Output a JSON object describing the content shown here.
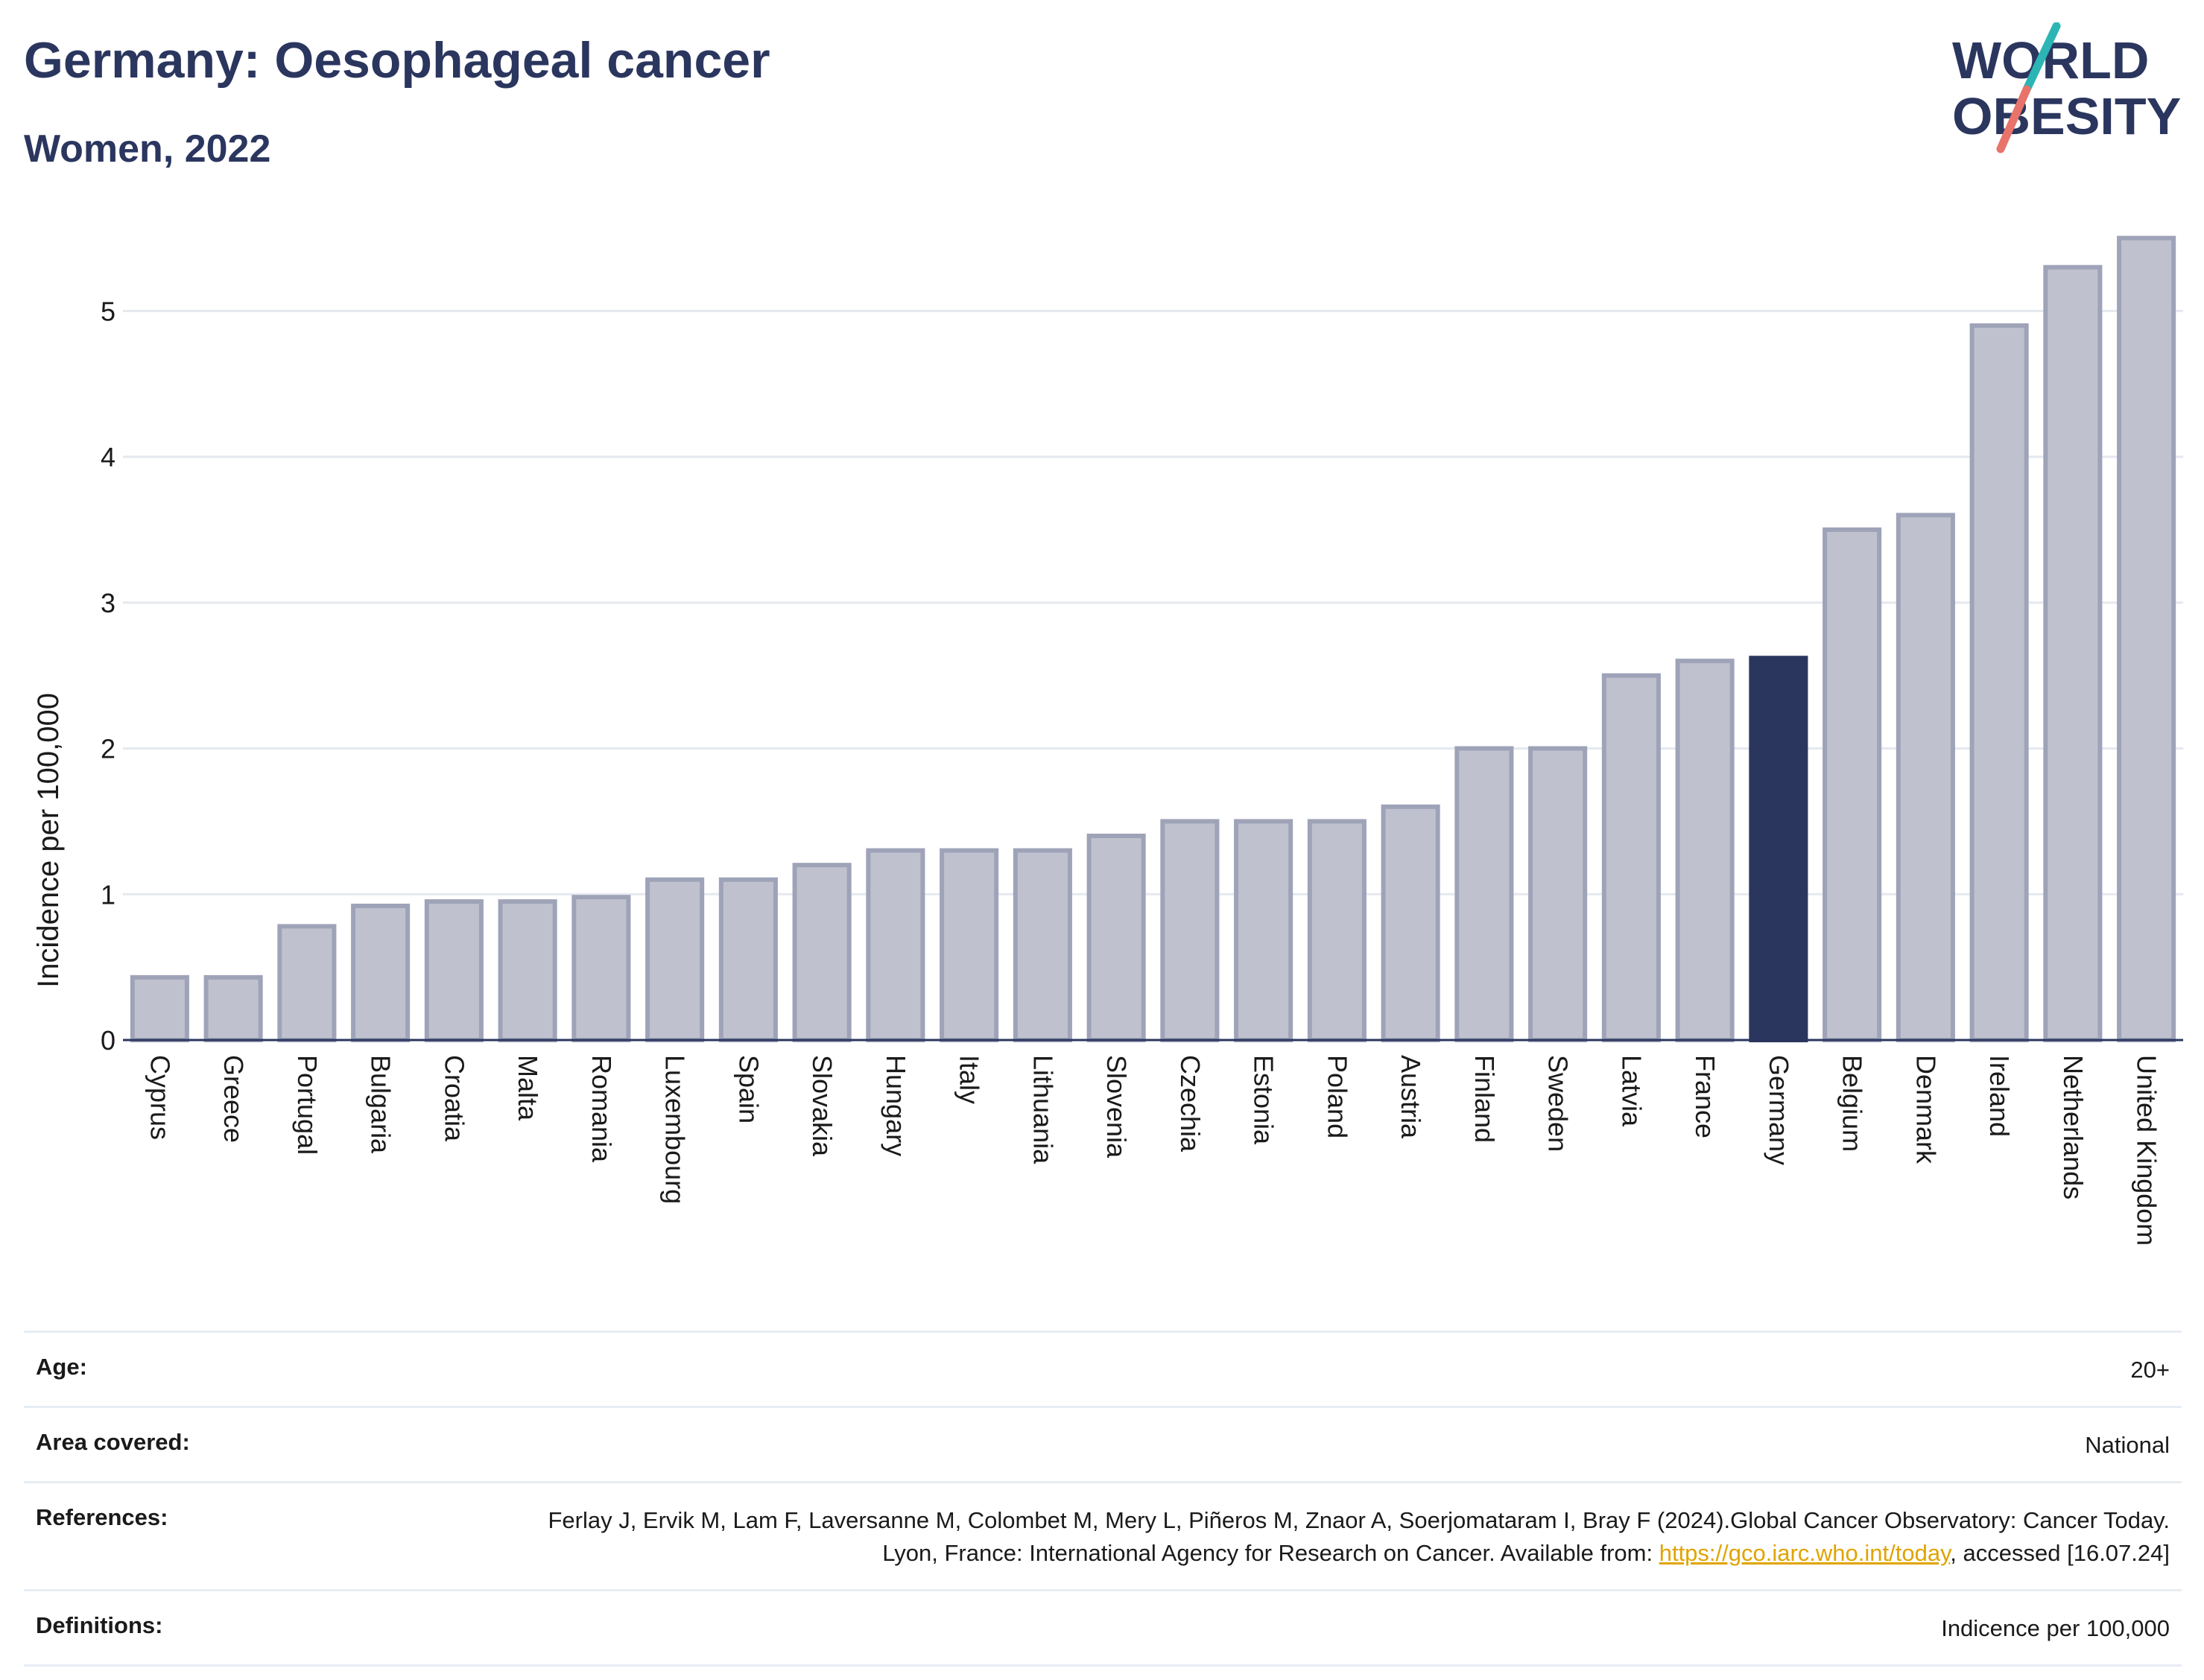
{
  "header": {
    "title": "Germany: Oesophageal cancer",
    "subtitle": "Women, 2022"
  },
  "logo": {
    "line1": "WORLD",
    "line2": "OBESITY"
  },
  "chart_data": {
    "type": "bar",
    "ylabel": "Incidence per 100,000",
    "ylim": [
      0,
      5.6
    ],
    "yticks": [
      0,
      1,
      2,
      3,
      4,
      5
    ],
    "grid": true,
    "categories": [
      "Cyprus",
      "Greece",
      "Portugal",
      "Bulgaria",
      "Croatia",
      "Malta",
      "Romania",
      "Luxembourg",
      "Spain",
      "Slovakia",
      "Hungary",
      "Italy",
      "Lithuania",
      "Slovenia",
      "Czechia",
      "Estonia",
      "Poland",
      "Austria",
      "Finland",
      "Sweden",
      "Latvia",
      "France",
      "Germany",
      "Belgium",
      "Denmark",
      "Ireland",
      "Netherlands",
      "United Kingdom"
    ],
    "values": [
      0.43,
      0.43,
      0.78,
      0.92,
      0.95,
      0.95,
      0.98,
      1.1,
      1.1,
      1.2,
      1.3,
      1.3,
      1.3,
      1.4,
      1.5,
      1.5,
      1.5,
      1.6,
      2.0,
      2.0,
      2.5,
      2.6,
      2.62,
      3.5,
      3.6,
      4.9,
      5.3,
      5.5
    ],
    "highlight": "Germany",
    "colors": {
      "default_fill": "#bfc2ce",
      "default_stroke": "#9ea3b8",
      "highlight": "#2b365f"
    }
  },
  "info": {
    "age_label": "Age:",
    "age_value": "20+",
    "area_label": "Area covered:",
    "area_value": "National",
    "references_label": "References:",
    "references_text": "Ferlay J, Ervik M, Lam F, Laversanne M, Colombet M, Mery L, Piñeros M, Znaor A, Soerjomataram I, Bray F (2024).Global Cancer Observatory: Cancer Today. Lyon, France: International Agency for Research on Cancer. Available from: ",
    "references_link": "https://gco.iarc.who.int/today",
    "references_tail": ", accessed [16.07.24]",
    "definitions_label": "Definitions:",
    "definitions_value": "Indicence per 100,000"
  }
}
